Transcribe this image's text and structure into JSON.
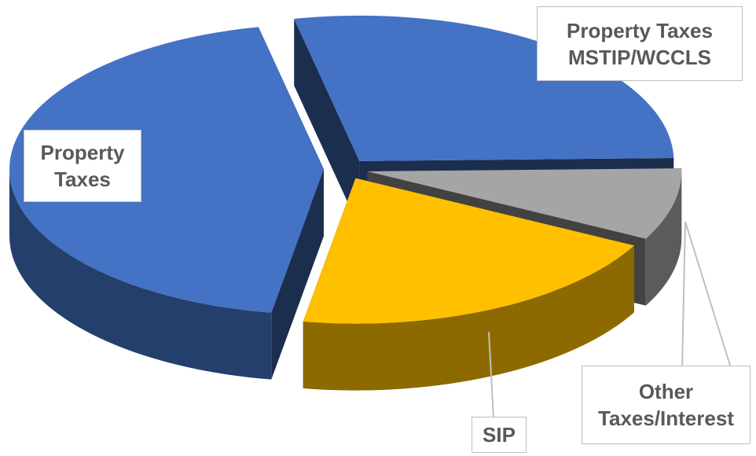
{
  "chart_data": {
    "type": "pie3d",
    "categories": [
      "Property Taxes MSTIP/WCCLS",
      "Other Taxes/Interest",
      "SIP",
      "Property Taxes"
    ],
    "values": [
      28,
      8,
      20,
      44
    ],
    "colors": [
      "#4472c4",
      "#a5a5a5",
      "#ffc000",
      "#4472c4"
    ],
    "exploded": true
  }
}
